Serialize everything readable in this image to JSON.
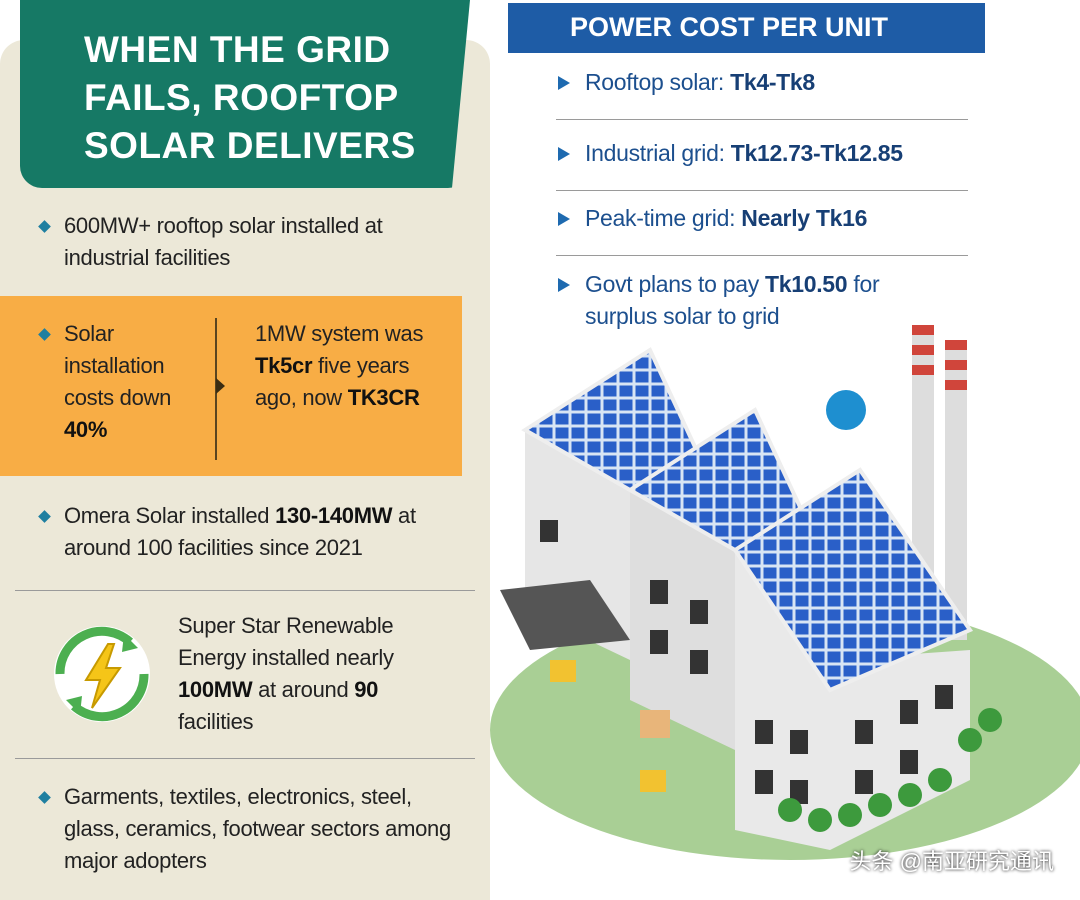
{
  "header": {
    "title": "WHEN THE GRID FAILS, ROOFTOP SOLAR DELIVERS"
  },
  "left": {
    "items": [
      {
        "parts": [
          {
            "text": "600MW+ rooftop solar installed at industrial facilities"
          }
        ]
      },
      {
        "parts": [
          {
            "text": "Omera Solar installed "
          },
          {
            "text": "130-140MW",
            "bold": true
          },
          {
            "text": " at around 100 facilities since 2021"
          }
        ]
      },
      {
        "parts": [
          {
            "text": "Super Star Renewable Energy installed nearly "
          },
          {
            "text": "100MW",
            "bold": true
          },
          {
            "text": " at around "
          },
          {
            "text": "90",
            "bold": true
          },
          {
            "text": " facilities"
          }
        ]
      },
      {
        "parts": [
          {
            "text": "Garments, textiles, electronics, steel, glass, ceramics, footwear sectors among major adopters"
          }
        ]
      }
    ],
    "highlight": {
      "left": {
        "parts": [
          {
            "text": "Solar installation costs down "
          },
          {
            "text": "40%",
            "bold": true
          }
        ]
      },
      "right": {
        "parts": [
          {
            "text": "1MW system was "
          },
          {
            "text": "Tk5cr",
            "bold": true
          },
          {
            "text": " five years ago, now "
          },
          {
            "text": "TK3CR",
            "bold": true
          }
        ]
      }
    }
  },
  "cost_panel": {
    "title": "POWER COST PER UNIT",
    "items": [
      {
        "parts": [
          {
            "text": "Rooftop solar: "
          },
          {
            "text": "Tk4-Tk8",
            "bold": true
          }
        ]
      },
      {
        "parts": [
          {
            "text": "Industrial grid: "
          },
          {
            "text": "Tk12.73-Tk12.85",
            "bold": true
          }
        ]
      },
      {
        "parts": [
          {
            "text": "Peak-time grid: "
          },
          {
            "text": "Nearly Tk16",
            "bold": true
          }
        ]
      },
      {
        "parts": [
          {
            "text": "Govt plans to pay "
          },
          {
            "text": "Tk10.50",
            "bold": true
          },
          {
            "text": " for surplus solar to grid"
          }
        ]
      }
    ]
  },
  "watermark": "头条 @南亚研究通讯"
}
